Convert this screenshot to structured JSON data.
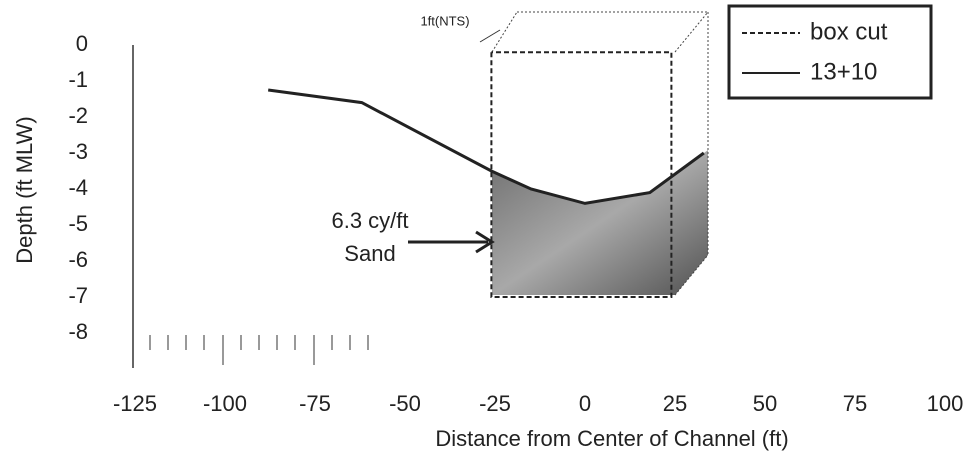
{
  "chart_data": {
    "type": "line",
    "x_label": "Distance from Center of Channel (ft)",
    "y_label": "Depth (ft MLW)",
    "xlim": [
      -125,
      100
    ],
    "xticks": [
      -125,
      -100,
      -75,
      -50,
      -25,
      0,
      25,
      50,
      75,
      100
    ],
    "ylim": [
      -9,
      0
    ],
    "yticks": [
      0,
      -1,
      -2,
      -3,
      -4,
      -5,
      -6,
      -7,
      -8
    ],
    "legend": "top-right",
    "series": [
      {
        "name": "box cut",
        "color": "#222",
        "dash": true,
        "x": [
          -26,
          -26,
          24,
          24,
          -26
        ],
        "values": [
          -0.2,
          -7,
          -7,
          -0.2,
          -0.2
        ]
      },
      {
        "name": "13+10",
        "color": "#222",
        "dash": false,
        "x": [
          -88,
          -62,
          -26,
          -15,
          0,
          18,
          33
        ],
        "values": [
          -1.25,
          -1.6,
          -3.5,
          -4.0,
          -4.4,
          -4.1,
          -3.0
        ]
      }
    ],
    "annotations": [
      "6.3 cy/ft",
      "Sand",
      "1ft(NTS)"
    ]
  }
}
